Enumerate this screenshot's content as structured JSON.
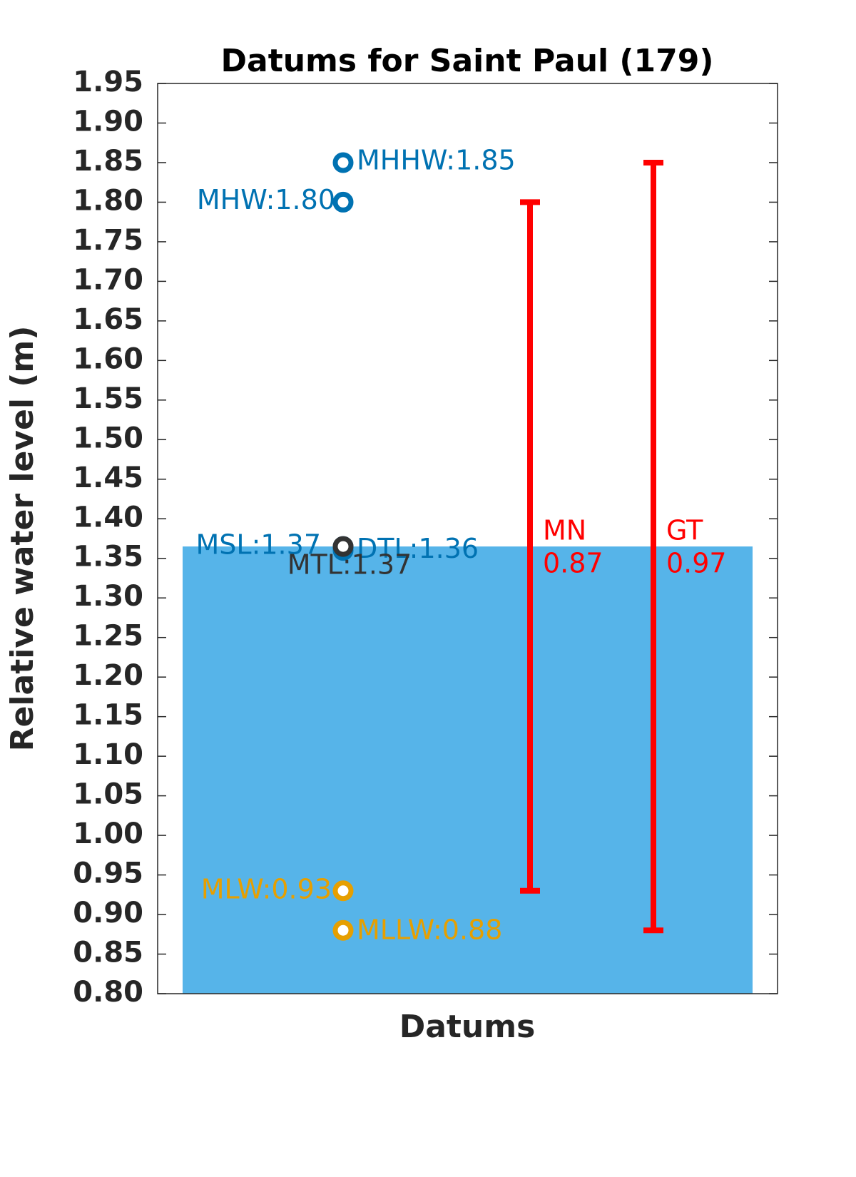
{
  "chart_data": {
    "type": "datums",
    "title": "Datums for Saint Paul (179)",
    "xlabel": "Datums",
    "ylabel": "Relative water level (m)",
    "ylim": [
      0.8,
      1.95
    ],
    "yticks": [
      {
        "value": 0.8,
        "label": "0.80"
      },
      0.85,
      {
        "value": 0.9,
        "label": "0.90"
      },
      0.95,
      {
        "value": 1.0,
        "label": "1.00"
      },
      1.05,
      {
        "value": 1.1,
        "label": "1.10"
      },
      1.15,
      {
        "value": 1.2,
        "label": "1.20"
      },
      1.25,
      {
        "value": 1.3,
        "label": "1.30"
      },
      1.35,
      {
        "value": 1.4,
        "label": "1.40"
      },
      1.45,
      {
        "value": 1.5,
        "label": "1.50"
      },
      1.55,
      {
        "value": 1.6,
        "label": "1.60"
      },
      1.65,
      {
        "value": 1.7,
        "label": "1.70"
      },
      1.75,
      {
        "value": 1.8,
        "label": "1.80"
      },
      1.85,
      {
        "value": 1.9,
        "label": "1.90"
      },
      1.95
    ],
    "bar": {
      "value": 1.365,
      "color": "#56b4e9"
    },
    "points": [
      {
        "label": "MHHW:1.85",
        "value": 1.85,
        "color": "#0072b2"
      },
      {
        "label": "MHW:1.80",
        "value": 1.8,
        "color": "#0072b2"
      },
      {
        "label": "MSL:1.37",
        "value": 1.365,
        "color": "#0072b2"
      },
      {
        "label": "DTL:1.36",
        "value": 1.36,
        "color": "#0072b2"
      },
      {
        "label": "MTL:1.37",
        "value": 1.365,
        "color": "#333333"
      },
      {
        "label": "MLW:0.93",
        "value": 0.93,
        "color": "#e69f00"
      },
      {
        "label": "MLLW:0.88",
        "value": 0.88,
        "color": "#e69f00"
      }
    ],
    "ranges": [
      {
        "name": "MN",
        "low": 0.93,
        "value": 0.87,
        "value_label": "0.87",
        "color": "#ff0000"
      },
      {
        "name": "GT",
        "low": 0.88,
        "value": 0.97,
        "value_label": "0.97",
        "color": "#ff0000"
      }
    ]
  }
}
